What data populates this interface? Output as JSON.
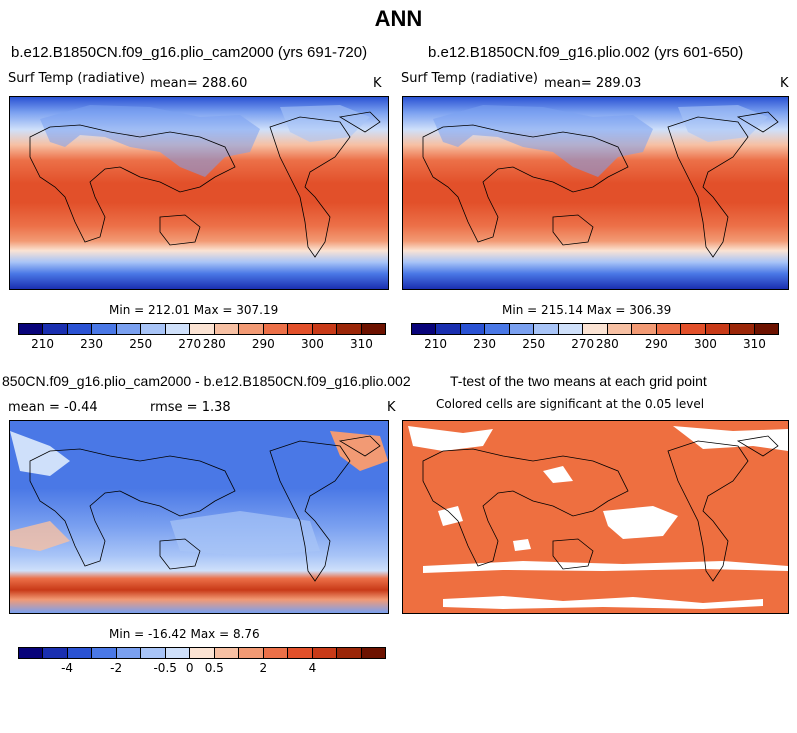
{
  "title": "ANN",
  "panels": {
    "p1": {
      "case": "b.e12.B1850CN.f09_g16.plio_cam2000 (yrs 691-720)",
      "variable": "Surf Temp (radiative)",
      "mean": "mean= 288.60",
      "units": "K",
      "minmax": "Min = 212.01 Max = 307.19"
    },
    "p2": {
      "case": "b.e12.B1850CN.f09_g16.plio.002 (yrs 601-650)",
      "variable": "Surf Temp (radiative)",
      "mean": "mean= 289.03",
      "units": "K",
      "minmax": "Min = 215.14 Max = 306.39"
    },
    "p3": {
      "case": "850CN.f09_g16.plio_cam2000 - b.e12.B1850CN.f09_g16.plio.002",
      "mean": "mean =   -0.44",
      "rmse": "rmse =    1.38",
      "units": "K",
      "minmax": "Min = -16.42 Max =   8.76"
    },
    "p4": {
      "title": "T-test of the two means at each grid point",
      "subtitle": "Colored cells are significant at the 0.05 level"
    }
  },
  "colorbars": {
    "temp": {
      "colors": [
        "#08037a",
        "#1a2fb0",
        "#2a52d3",
        "#4a78e6",
        "#7aa0f0",
        "#a8c4f7",
        "#cfe0fa",
        "#fbe3d3",
        "#f7c0a3",
        "#f29a74",
        "#ec7048",
        "#e2502a",
        "#c83a18",
        "#9b2608",
        "#6d1200"
      ],
      "tick_labels": [
        "210",
        "230",
        "250",
        "270",
        "280",
        "290",
        "300",
        "310"
      ],
      "tick_positions": [
        1,
        3,
        5,
        7,
        8,
        10,
        12,
        14
      ]
    },
    "diff": {
      "colors": [
        "#08037a",
        "#1a2fb0",
        "#2a52d3",
        "#4a78e6",
        "#7aa0f0",
        "#a8c4f7",
        "#cfe0fa",
        "#fbe3d3",
        "#f7c0a3",
        "#f29a74",
        "#ec7048",
        "#e2502a",
        "#c83a18",
        "#9b2608",
        "#6d1200"
      ],
      "tick_labels": [
        "-4",
        "-2",
        "-0.5",
        "0",
        "0.5",
        "2",
        "4"
      ],
      "tick_positions": [
        2,
        4,
        6,
        7,
        8,
        10,
        12
      ]
    }
  },
  "map_colors": {
    "land_outline": "#000000",
    "ttest_fill": "#ee6f40",
    "ttest_nonsig": "#ffffff"
  }
}
